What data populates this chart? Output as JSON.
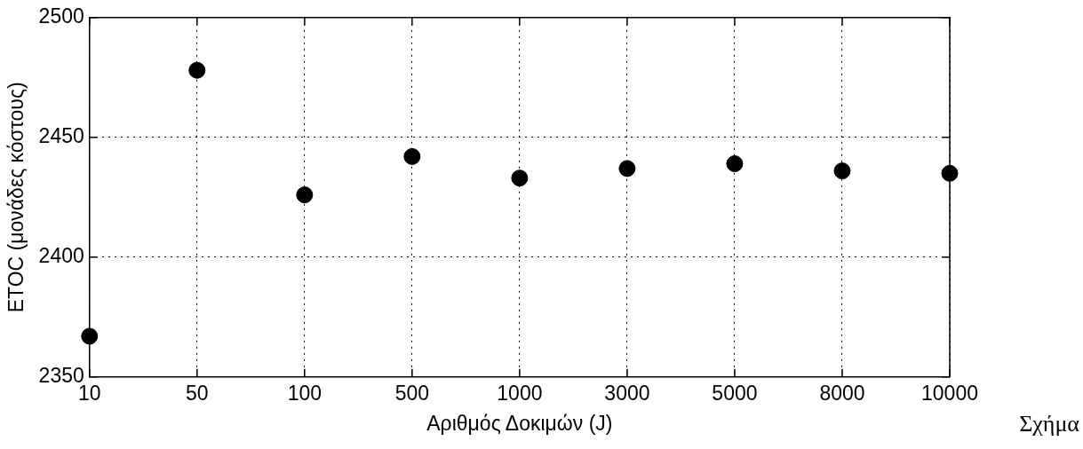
{
  "chart_data": {
    "type": "scatter",
    "xlabel": "Αριθμός Δοκιμών (J)",
    "ylabel": "ETOC (μονάδες κόστους)",
    "categories": [
      "10",
      "50",
      "100",
      "500",
      "1000",
      "3000",
      "5000",
      "8000",
      "10000"
    ],
    "series": [
      {
        "color": "#000000",
        "values": [
          2367,
          2478,
          2426,
          2442,
          2433,
          2437,
          2439,
          2436,
          2435
        ]
      }
    ],
    "ylim": [
      2350,
      2500
    ],
    "yticks": [
      2350,
      2400,
      2450,
      2500
    ],
    "grid": true,
    "marker": "circle",
    "legend": false,
    "annotations": [
      "Σχήμα"
    ]
  }
}
